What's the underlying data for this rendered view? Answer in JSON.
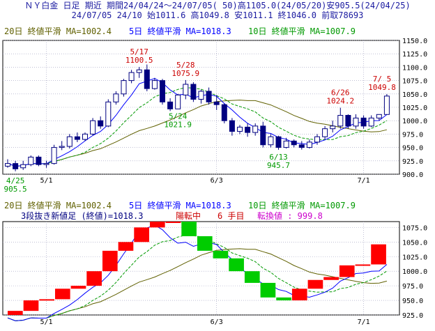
{
  "header": {
    "title": "ＮＹ白金 日足 期近 期間24/04/24〜24/07/05( 50)高1105.0(24/05/20)安905.5(24/04/25)",
    "bar": "24/07/05 24/10 始1011.6 高1049.8 安1011.1 終1046.0 前取78693"
  },
  "colors": {
    "up_fill": "#ffffff",
    "down_fill": "#000080",
    "candle_edge": "#000080",
    "ma20": "#606000",
    "ma5": "#0000ff",
    "ma10": "#009900",
    "high_label": "#cc0000",
    "low_label": "#009900",
    "renko_up": "#ff0000",
    "renko_down": "#00cc00",
    "grid": "#9999bb"
  },
  "legend": {
    "ma20": "20日 終値平滑 MA=1002.4",
    "ma5": "5日 終値平滑 MA=1018.3",
    "ma10": "10日 終値平滑 MA=1007.9"
  },
  "renko_info": {
    "prefix": "3段抜き新値足 (終値)=1018.3",
    "state": "陽転中",
    "count": "6 手目",
    "turn": "転換値 : 999.8"
  },
  "chart_data": [
    {
      "type": "candlestick",
      "title": "ＮＹ白金 日足 期近",
      "x_ticks": [
        "5/1",
        "6/3",
        "7/1"
      ],
      "ylim": [
        900,
        1150
      ],
      "y_ticks": [
        "1150.0",
        "1125.0",
        "1100.0",
        "1075.0",
        "1050.0",
        "1025.0",
        "1000.0",
        "975.0",
        "950.0",
        "925.0",
        "900.0"
      ],
      "grid": true,
      "candles": [
        {
          "d": "4/24",
          "o": 915,
          "h": 928,
          "l": 912,
          "c": 920
        },
        {
          "d": "4/25",
          "o": 920,
          "h": 925,
          "l": 905.5,
          "c": 910
        },
        {
          "d": "4/26",
          "o": 912,
          "h": 925,
          "l": 908,
          "c": 918
        },
        {
          "d": "4/29",
          "o": 918,
          "h": 935,
          "l": 915,
          "c": 932
        },
        {
          "d": "4/30",
          "o": 932,
          "h": 935,
          "l": 915,
          "c": 918
        },
        {
          "d": "5/1",
          "o": 918,
          "h": 925,
          "l": 912,
          "c": 920
        },
        {
          "d": "5/2",
          "o": 920,
          "h": 955,
          "l": 918,
          "c": 950
        },
        {
          "d": "5/3",
          "o": 950,
          "h": 962,
          "l": 945,
          "c": 952
        },
        {
          "d": "5/6",
          "o": 952,
          "h": 975,
          "l": 948,
          "c": 970
        },
        {
          "d": "5/7",
          "o": 970,
          "h": 978,
          "l": 960,
          "c": 965
        },
        {
          "d": "5/8",
          "o": 965,
          "h": 978,
          "l": 962,
          "c": 975
        },
        {
          "d": "5/9",
          "o": 975,
          "h": 1005,
          "l": 972,
          "c": 1000
        },
        {
          "d": "5/10",
          "o": 1000,
          "h": 1008,
          "l": 985,
          "c": 990
        },
        {
          "d": "5/13",
          "o": 990,
          "h": 1040,
          "l": 988,
          "c": 1035
        },
        {
          "d": "5/14",
          "o": 1035,
          "h": 1055,
          "l": 1030,
          "c": 1050
        },
        {
          "d": "5/15",
          "o": 1050,
          "h": 1078,
          "l": 1045,
          "c": 1075
        },
        {
          "d": "5/16",
          "o": 1075,
          "h": 1095,
          "l": 1070,
          "c": 1090
        },
        {
          "d": "5/17",
          "o": 1090,
          "h": 1100.5,
          "l": 1080,
          "c": 1095
        },
        {
          "d": "5/20",
          "o": 1095,
          "h": 1105,
          "l": 1055,
          "c": 1060
        },
        {
          "d": "5/21",
          "o": 1060,
          "h": 1080,
          "l": 1058,
          "c": 1075
        },
        {
          "d": "5/22",
          "o": 1075,
          "h": 1078,
          "l": 1030,
          "c": 1035
        },
        {
          "d": "5/23",
          "o": 1035,
          "h": 1042,
          "l": 1018,
          "c": 1022
        },
        {
          "d": "5/24",
          "o": 1022,
          "h": 1050,
          "l": 1021.9,
          "c": 1048
        },
        {
          "d": "5/28",
          "o": 1048,
          "h": 1075.9,
          "l": 1040,
          "c": 1068
        },
        {
          "d": "5/29",
          "o": 1068,
          "h": 1072,
          "l": 1035,
          "c": 1040
        },
        {
          "d": "5/30",
          "o": 1040,
          "h": 1058,
          "l": 1032,
          "c": 1055
        },
        {
          "d": "5/31",
          "o": 1055,
          "h": 1062,
          "l": 1030,
          "c": 1035
        },
        {
          "d": "6/3",
          "o": 1035,
          "h": 1048,
          "l": 1020,
          "c": 1030
        },
        {
          "d": "6/4",
          "o": 1030,
          "h": 1032,
          "l": 995,
          "c": 1000
        },
        {
          "d": "6/5",
          "o": 1000,
          "h": 1005,
          "l": 972,
          "c": 980
        },
        {
          "d": "6/6",
          "o": 980,
          "h": 992,
          "l": 975,
          "c": 988
        },
        {
          "d": "6/7",
          "o": 988,
          "h": 995,
          "l": 970,
          "c": 978
        },
        {
          "d": "6/10",
          "o": 978,
          "h": 995,
          "l": 972,
          "c": 990
        },
        {
          "d": "6/11",
          "o": 990,
          "h": 998,
          "l": 950,
          "c": 955
        },
        {
          "d": "6/12",
          "o": 955,
          "h": 975,
          "l": 950,
          "c": 970
        },
        {
          "d": "6/13",
          "o": 970,
          "h": 972,
          "l": 945.7,
          "c": 950
        },
        {
          "d": "6/14",
          "o": 950,
          "h": 968,
          "l": 948,
          "c": 962
        },
        {
          "d": "6/17",
          "o": 962,
          "h": 965,
          "l": 950,
          "c": 955
        },
        {
          "d": "6/18",
          "o": 955,
          "h": 962,
          "l": 946,
          "c": 950
        },
        {
          "d": "6/20",
          "o": 950,
          "h": 965,
          "l": 948,
          "c": 960
        },
        {
          "d": "6/21",
          "o": 960,
          "h": 975,
          "l": 955,
          "c": 970
        },
        {
          "d": "6/24",
          "o": 970,
          "h": 990,
          "l": 965,
          "c": 985
        },
        {
          "d": "6/25",
          "o": 985,
          "h": 1000,
          "l": 978,
          "c": 990
        },
        {
          "d": "6/26",
          "o": 990,
          "h": 1024.2,
          "l": 985,
          "c": 1010
        },
        {
          "d": "6/27",
          "o": 1010,
          "h": 1012,
          "l": 985,
          "c": 990
        },
        {
          "d": "6/28",
          "o": 990,
          "h": 1012,
          "l": 985,
          "c": 1005
        },
        {
          "d": "7/1",
          "o": 1005,
          "h": 1010,
          "l": 985,
          "c": 990
        },
        {
          "d": "7/2",
          "o": 990,
          "h": 1010,
          "l": 988,
          "c": 1005
        },
        {
          "d": "7/3",
          "o": 1005,
          "h": 1012,
          "l": 1000,
          "c": 1011.6
        },
        {
          "d": "7/5",
          "o": 1011.6,
          "h": 1049.8,
          "l": 1011.1,
          "c": 1046
        }
      ],
      "annotations": [
        {
          "kind": "high",
          "date": "5/17",
          "value": "1100.5",
          "x_index": 17,
          "y": 1100.5
        },
        {
          "kind": "high",
          "date": "5/28",
          "value": "1075.9",
          "x_index": 23,
          "y": 1075.9
        },
        {
          "kind": "low",
          "date": "5/24",
          "value": "1021.9",
          "x_index": 22,
          "y": 1021.9
        },
        {
          "kind": "low",
          "date": "6/13",
          "value": "945.7",
          "x_index": 35,
          "y": 945.7
        },
        {
          "kind": "high",
          "date": "6/26",
          "value": "1024.2",
          "x_index": 43,
          "y": 1024.2
        },
        {
          "kind": "high",
          "date": "7/ 5",
          "value": "1049.8",
          "x_index": 49,
          "y": 1049.8
        },
        {
          "kind": "low",
          "date": "4/25",
          "value": "905.5",
          "x_index": 1,
          "y": 905.5
        }
      ]
    },
    {
      "type": "renko",
      "title": "3段抜き新値足 (終値)",
      "x_ticks": [
        "5/1",
        "6/3",
        "7/1"
      ],
      "ylim": [
        925,
        1085
      ],
      "y_ticks": [
        "1075.0",
        "1050.0",
        "1025.0",
        "1000.0",
        "975.0",
        "950.0",
        "925.0"
      ],
      "grid": true,
      "bricks": [
        {
          "from": 920,
          "to": 932,
          "dir": "up"
        },
        {
          "from": 932,
          "to": 950,
          "dir": "up"
        },
        {
          "from": 950,
          "to": 952,
          "dir": "up"
        },
        {
          "from": 952,
          "to": 970,
          "dir": "up"
        },
        {
          "from": 970,
          "to": 975,
          "dir": "up"
        },
        {
          "from": 975,
          "to": 1000,
          "dir": "up"
        },
        {
          "from": 1000,
          "to": 1035,
          "dir": "up"
        },
        {
          "from": 1035,
          "to": 1050,
          "dir": "up"
        },
        {
          "from": 1050,
          "to": 1075,
          "dir": "up"
        },
        {
          "from": 1075,
          "to": 1090,
          "dir": "up"
        },
        {
          "from": 1090,
          "to": 1095,
          "dir": "up"
        },
        {
          "from": 1095,
          "to": 1060,
          "dir": "down"
        },
        {
          "from": 1060,
          "to": 1035,
          "dir": "down"
        },
        {
          "from": 1035,
          "to": 1022,
          "dir": "down"
        },
        {
          "from": 1022,
          "to": 1000,
          "dir": "down"
        },
        {
          "from": 1000,
          "to": 980,
          "dir": "down"
        },
        {
          "from": 980,
          "to": 955,
          "dir": "down"
        },
        {
          "from": 955,
          "to": 950,
          "dir": "down"
        },
        {
          "from": 950,
          "to": 970,
          "dir": "up"
        },
        {
          "from": 970,
          "to": 985,
          "dir": "up"
        },
        {
          "from": 985,
          "to": 990,
          "dir": "up"
        },
        {
          "from": 990,
          "to": 1010,
          "dir": "up"
        },
        {
          "from": 1010,
          "to": 1011.6,
          "dir": "up"
        },
        {
          "from": 1011.6,
          "to": 1046,
          "dir": "up"
        }
      ]
    }
  ]
}
